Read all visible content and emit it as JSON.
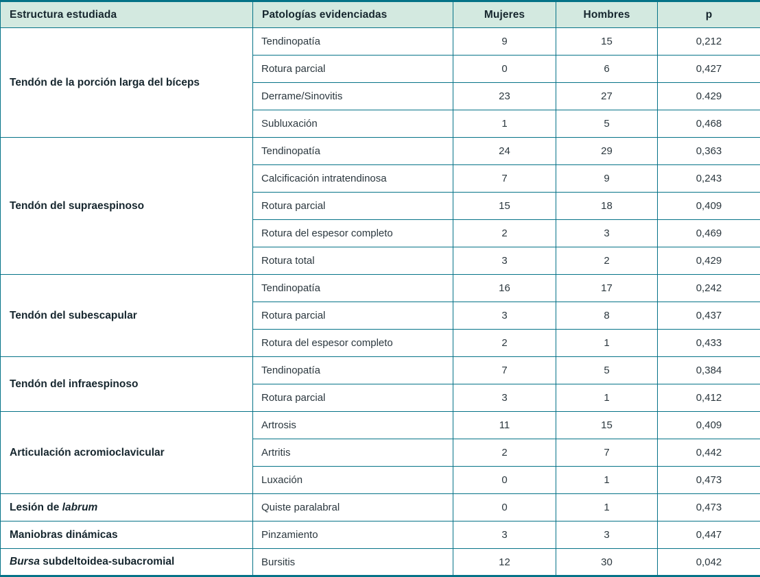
{
  "table": {
    "colors": {
      "border": "#047287",
      "header_bg": "#d3e9e0",
      "header_text": "#16262e",
      "body_text": "#2b373e"
    },
    "columns": [
      {
        "key": "estructura-estudiada",
        "label": "Estructura estudiada",
        "align": "left"
      },
      {
        "key": "patologias-evidenciadas",
        "label": "Patologías evidenciadas",
        "align": "left"
      },
      {
        "key": "mujeres",
        "label": "Mujeres",
        "align": "center"
      },
      {
        "key": "hombres",
        "label": "Hombres",
        "align": "center"
      },
      {
        "key": "p",
        "label": "p",
        "align": "center"
      }
    ],
    "groups": [
      {
        "structure": [
          {
            "text": "Tendón de la porción larga del bíceps",
            "italic": false
          }
        ],
        "rows": [
          {
            "pathology": "Tendinopatía",
            "mujeres": "9",
            "hombres": "15",
            "p": "0,212"
          },
          {
            "pathology": "Rotura parcial",
            "mujeres": "0",
            "hombres": "6",
            "p": "0,427"
          },
          {
            "pathology": "Derrame/Sinovitis",
            "mujeres": "23",
            "hombres": "27",
            "p": "0.429"
          },
          {
            "pathology": "Subluxación",
            "mujeres": "1",
            "hombres": "5",
            "p": "0,468"
          }
        ]
      },
      {
        "structure": [
          {
            "text": "Tendón del supraespinoso",
            "italic": false
          }
        ],
        "rows": [
          {
            "pathology": "Tendinopatía",
            "mujeres": "24",
            "hombres": "29",
            "p": "0,363"
          },
          {
            "pathology": "Calcificación intratendinosa",
            "mujeres": "7",
            "hombres": "9",
            "p": "0,243"
          },
          {
            "pathology": "Rotura parcial",
            "mujeres": "15",
            "hombres": "18",
            "p": "0,409"
          },
          {
            "pathology": "Rotura del espesor completo",
            "mujeres": "2",
            "hombres": "3",
            "p": "0,469"
          },
          {
            "pathology": "Rotura total",
            "mujeres": "3",
            "hombres": "2",
            "p": "0,429"
          }
        ]
      },
      {
        "structure": [
          {
            "text": "Tendón del subescapular",
            "italic": false
          }
        ],
        "rows": [
          {
            "pathology": "Tendinopatía",
            "mujeres": "16",
            "hombres": "17",
            "p": "0,242"
          },
          {
            "pathology": "Rotura parcial",
            "mujeres": "3",
            "hombres": "8",
            "p": "0,437"
          },
          {
            "pathology": "Rotura del espesor completo",
            "mujeres": "2",
            "hombres": "1",
            "p": "0,433"
          }
        ]
      },
      {
        "structure": [
          {
            "text": "Tendón del infraespinoso",
            "italic": false
          }
        ],
        "rows": [
          {
            "pathology": "Tendinopatía",
            "mujeres": "7",
            "hombres": "5",
            "p": "0,384"
          },
          {
            "pathology": "Rotura parcial",
            "mujeres": "3",
            "hombres": "1",
            "p": "0,412"
          }
        ]
      },
      {
        "structure": [
          {
            "text": "Articulación acromioclavicular",
            "italic": false
          }
        ],
        "rows": [
          {
            "pathology": "Artrosis",
            "mujeres": "11",
            "hombres": "15",
            "p": "0,409"
          },
          {
            "pathology": "Artritis",
            "mujeres": "2",
            "hombres": "7",
            "p": "0,442"
          },
          {
            "pathology": "Luxación",
            "mujeres": "0",
            "hombres": "1",
            "p": "0,473"
          }
        ]
      },
      {
        "structure": [
          {
            "text": "Lesión de ",
            "italic": false
          },
          {
            "text": "labrum",
            "italic": true
          }
        ],
        "rows": [
          {
            "pathology": "Quiste paralabral",
            "mujeres": "0",
            "hombres": "1",
            "p": "0,473"
          }
        ]
      },
      {
        "structure": [
          {
            "text": "Maniobras dinámicas",
            "italic": false
          }
        ],
        "rows": [
          {
            "pathology": "Pinzamiento",
            "mujeres": "3",
            "hombres": "3",
            "p": "0,447"
          }
        ]
      },
      {
        "structure": [
          {
            "text": "Bursa",
            "italic": true
          },
          {
            "text": " subdeltoidea-subacromial",
            "italic": false
          }
        ],
        "rows": [
          {
            "pathology": "Bursitis",
            "mujeres": "12",
            "hombres": "30",
            "p": "0,042"
          }
        ]
      }
    ]
  }
}
